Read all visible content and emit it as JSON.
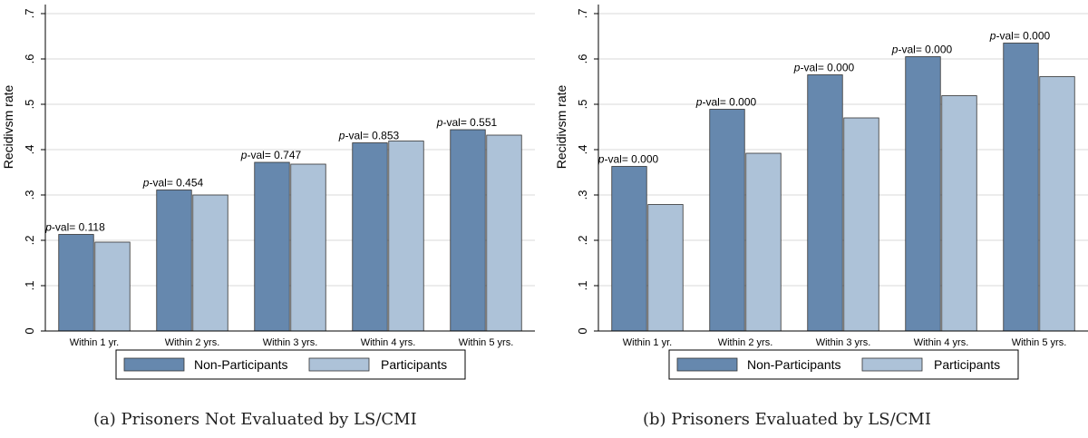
{
  "colors": {
    "non_participants": "#6688ae",
    "participants": "#adc2d8",
    "grid": "#d9d9d9",
    "axis": "#000000"
  },
  "pval_prefix": "p",
  "pval_suffix": "-val= ",
  "captions": {
    "a": "(a) Prisoners Not Evaluated by LS/CMI",
    "b": "(b) Prisoners Evaluated by LS/CMI"
  },
  "chart_data": [
    {
      "type": "bar",
      "ylabel": "Recidivsm rate",
      "ylim": [
        0,
        0.72
      ],
      "yticks": [
        0,
        0.1,
        0.2,
        0.3,
        0.4,
        0.5,
        0.6,
        0.7
      ],
      "ytick_labels": [
        "0",
        ".1",
        ".2",
        ".3",
        ".4",
        ".5",
        ".6",
        ".7"
      ],
      "grid": true,
      "legend_position": "bottom",
      "categories": [
        "Within 1 yr.",
        "Within 2 yrs.",
        "Within 3 yrs.",
        "Within 4 yrs.",
        "Within 5 yrs."
      ],
      "series": [
        {
          "name": "Non-Participants",
          "values": [
            0.213,
            0.311,
            0.372,
            0.415,
            0.444
          ]
        },
        {
          "name": "Participants",
          "values": [
            0.196,
            0.3,
            0.368,
            0.419,
            0.432
          ]
        }
      ],
      "pvalues": [
        "0.118",
        "0.454",
        "0.747",
        "0.853",
        "0.551"
      ]
    },
    {
      "type": "bar",
      "ylabel": "Recidivsm rate",
      "ylim": [
        0,
        0.72
      ],
      "yticks": [
        0,
        0.1,
        0.2,
        0.3,
        0.4,
        0.5,
        0.6,
        0.7
      ],
      "ytick_labels": [
        "0",
        ".1",
        ".2",
        ".3",
        ".4",
        ".5",
        ".6",
        ".7"
      ],
      "grid": true,
      "legend_position": "bottom",
      "categories": [
        "Within 1 yr.",
        "Within 2 yrs.",
        "Within 3 yrs.",
        "Within 4 yrs.",
        "Within 5 yrs."
      ],
      "series": [
        {
          "name": "Non-Participants",
          "values": [
            0.363,
            0.489,
            0.565,
            0.605,
            0.635
          ]
        },
        {
          "name": "Participants",
          "values": [
            0.279,
            0.392,
            0.47,
            0.519,
            0.561
          ]
        }
      ],
      "pvalues": [
        "0.000",
        "0.000",
        "0.000",
        "0.000",
        "0.000"
      ]
    }
  ]
}
